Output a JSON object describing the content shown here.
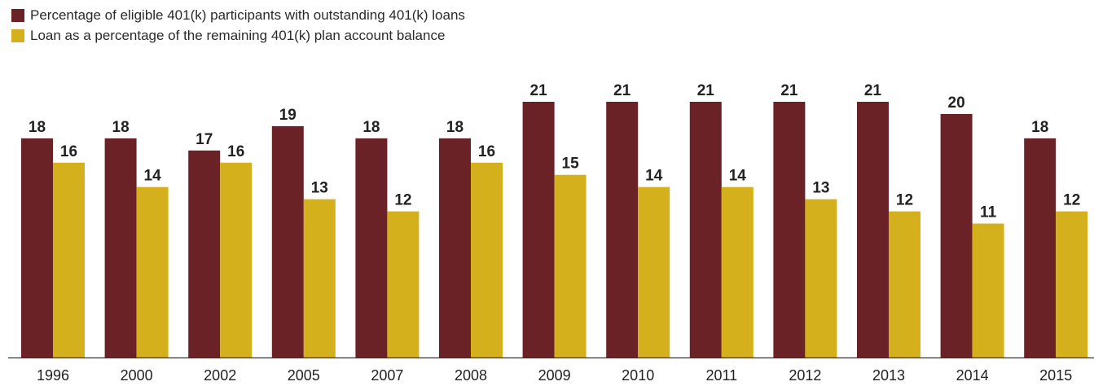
{
  "chart_data": {
    "type": "bar",
    "categories": [
      "1996",
      "2000",
      "2002",
      "2005",
      "2007",
      "2008",
      "2009",
      "2010",
      "2011",
      "2012",
      "2013",
      "2014",
      "2015"
    ],
    "series": [
      {
        "name": "Percentage of eligible 401(k) participants with outstanding 401(k) loans",
        "color": "#6b2226",
        "values": [
          18,
          18,
          17,
          19,
          18,
          18,
          21,
          21,
          21,
          21,
          21,
          20,
          18
        ]
      },
      {
        "name": "Loan as a percentage of the remaining 401(k) plan account balance",
        "color": "#d4b11c",
        "values": [
          16,
          14,
          16,
          13,
          12,
          16,
          15,
          14,
          14,
          13,
          12,
          11,
          12
        ]
      }
    ],
    "ylim": [
      0,
      21
    ],
    "grid": false,
    "legend_position": "top-left",
    "data_labels": true
  }
}
